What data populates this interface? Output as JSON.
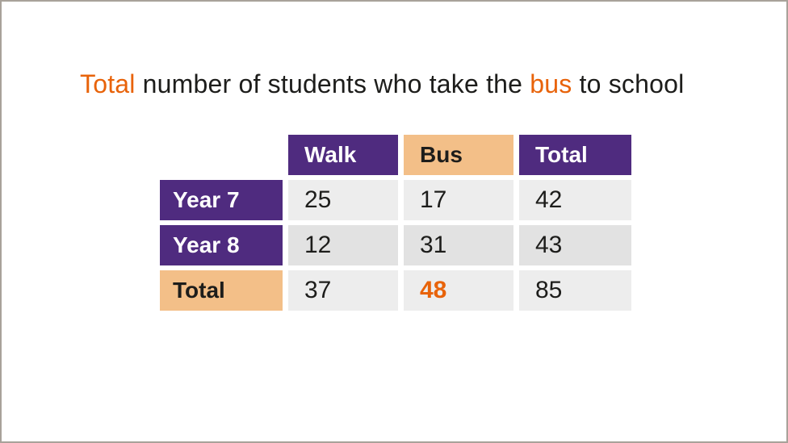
{
  "title": {
    "parts": [
      "Total",
      " number of students who take the ",
      "bus",
      " to school"
    ]
  },
  "table": {
    "column_headers": [
      "Walk",
      "Bus",
      "Total"
    ],
    "rows": [
      {
        "header": "Year 7",
        "values": [
          "25",
          "17",
          "42"
        ]
      },
      {
        "header": "Year 8",
        "values": [
          "12",
          "31",
          "43"
        ]
      },
      {
        "header": "Total",
        "values": [
          "37",
          "48",
          "85"
        ]
      }
    ]
  },
  "chart_data": {
    "type": "table",
    "title": "Total number of students who take the bus to school",
    "columns": [
      "",
      "Walk",
      "Bus",
      "Total"
    ],
    "rows": [
      [
        "Year 7",
        25,
        17,
        42
      ],
      [
        "Year 8",
        12,
        31,
        43
      ],
      [
        "Total",
        37,
        48,
        85
      ]
    ],
    "highlighted_cell": {
      "row": "Total",
      "column": "Bus",
      "value": 48
    },
    "highlighted_title_words": [
      "Total",
      "bus"
    ]
  },
  "colors": {
    "purple": "#4f2b7f",
    "tan": "#f3bf88",
    "orange_highlight": "#e8630a",
    "cell_light_gray": "#ededed",
    "cell_mid_gray": "#e2e2e2",
    "text_dark": "#1d1d1b",
    "frame_border": "#a8a29a"
  }
}
